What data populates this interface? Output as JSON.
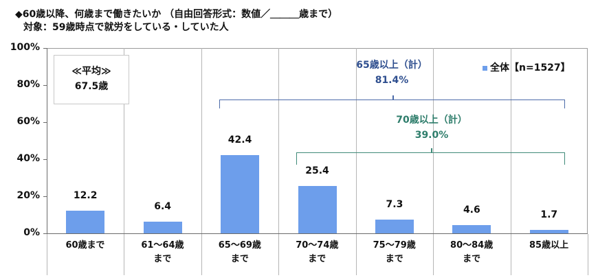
{
  "title": {
    "line1": "◆60歳以降、何歳まで働きたいか （自由回答形式：数値／＿＿＿歳まで）",
    "line2": "対象：59歳時点で就労をしている・していた人"
  },
  "average_box": {
    "label": "≪平均≫",
    "value": "67.5歳"
  },
  "legend": {
    "label": "全体【n=1527】",
    "color": "#6d9eeb"
  },
  "brackets": {
    "age65plus": {
      "label": "65歳以上（計）",
      "value": "81.4%",
      "color": "#2f4f8f"
    },
    "age70plus": {
      "label": "70歳以上（計）",
      "value": "39.0%",
      "color": "#2e7d6b"
    }
  },
  "y_axis": {
    "ticks": [
      "0%",
      "20%",
      "40%",
      "60%",
      "80%",
      "100%"
    ]
  },
  "x_axis": {
    "labels": [
      [
        "60歳まで"
      ],
      [
        "61～64歳",
        "まで"
      ],
      [
        "65～69歳",
        "まで"
      ],
      [
        "70～74歳",
        "まで"
      ],
      [
        "75～79歳",
        "まで"
      ],
      [
        "80～84歳",
        "まで"
      ],
      [
        "85歳以上"
      ]
    ]
  },
  "value_labels": [
    "12.2",
    "6.4",
    "42.4",
    "25.4",
    "7.3",
    "4.6",
    "1.7"
  ],
  "chart_data": {
    "type": "bar",
    "title": "60歳以降、何歳まで働きたいか （自由回答形式：数値／＿＿＿歳まで）",
    "subtitle": "対象：59歳時点で就労をしている・していた人",
    "categories": [
      "60歳まで",
      "61～64歳まで",
      "65～69歳まで",
      "70～74歳まで",
      "75～79歳まで",
      "80～84歳まで",
      "85歳以上"
    ],
    "series": [
      {
        "name": "全体【n=1527】",
        "values": [
          12.2,
          6.4,
          42.4,
          25.4,
          7.3,
          4.6,
          1.7
        ],
        "color": "#6d9eeb"
      }
    ],
    "xlabel": "",
    "ylabel": "",
    "ylim": [
      0,
      100
    ],
    "yticks": [
      "0%",
      "20%",
      "40%",
      "60%",
      "80%",
      "100%"
    ],
    "grid": "vertical category separators",
    "legend_position": "top-right",
    "annotations": [
      "≪平均≫ 67.5歳",
      "65歳以上（計） 81.4%",
      "70歳以上（計） 39.0%"
    ]
  }
}
